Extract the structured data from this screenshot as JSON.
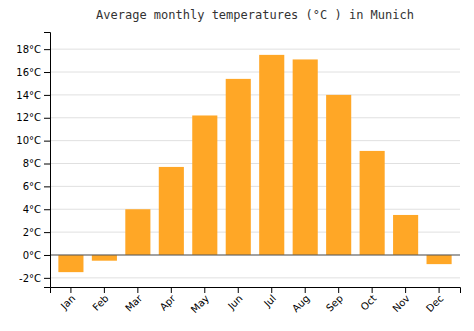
{
  "chart_data": {
    "type": "bar",
    "title": "Average monthly temperatures (°C ) in Munich",
    "categories": [
      "Jan",
      "Feb",
      "Mar",
      "Apr",
      "May",
      "Jun",
      "Jul",
      "Aug",
      "Sep",
      "Oct",
      "Nov",
      "Dec"
    ],
    "values": [
      -1.5,
      -0.5,
      4.0,
      7.7,
      12.2,
      15.4,
      17.5,
      17.1,
      14.0,
      9.1,
      3.5,
      -0.8
    ],
    "color": "#FFA726",
    "ylim": [
      -2.8,
      19.5
    ],
    "yticks": [
      {
        "value": -2,
        "label": "-2°C"
      },
      {
        "value": 0,
        "label": "0°C"
      },
      {
        "value": 2,
        "label": "2°C"
      },
      {
        "value": 4,
        "label": "4°C"
      },
      {
        "value": 6,
        "label": "6°C"
      },
      {
        "value": 8,
        "label": "8°C"
      },
      {
        "value": 10,
        "label": "10°C"
      },
      {
        "value": 12,
        "label": "12°C"
      },
      {
        "value": 14,
        "label": "14°C"
      },
      {
        "value": 16,
        "label": "16°C"
      },
      {
        "value": 18,
        "label": "18°C"
      }
    ],
    "grid": true
  }
}
